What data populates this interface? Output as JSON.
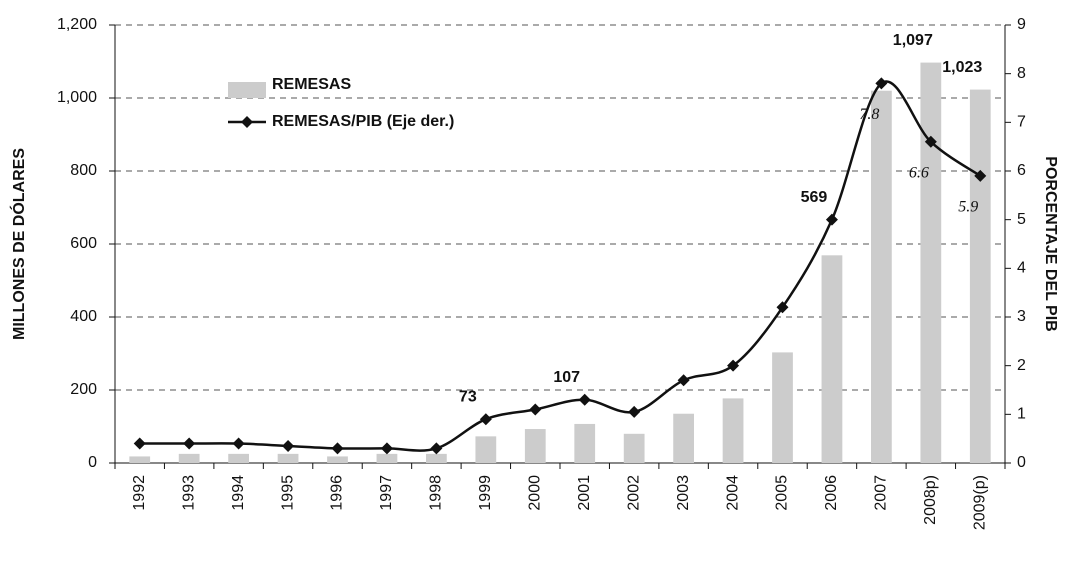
{
  "chart_data": {
    "type": "bar_line",
    "categories": [
      "1992",
      "1993",
      "1994",
      "1995",
      "1996",
      "1997",
      "1998",
      "1999",
      "2000",
      "2001",
      "2002",
      "2003",
      "2004",
      "2005",
      "2006",
      "2007",
      "2008p)",
      "2009(p)"
    ],
    "series": [
      {
        "name": "REMESAS",
        "color": "#cccccc",
        "type": "bar",
        "values": [
          18,
          25,
          25,
          25,
          18,
          25,
          25,
          73,
          93,
          107,
          80,
          135,
          177,
          303,
          569,
          1020,
          1097,
          1023
        ],
        "value_labels": [
          null,
          null,
          null,
          null,
          null,
          null,
          null,
          "73",
          null,
          "107",
          null,
          null,
          null,
          null,
          "569",
          null,
          "1,097",
          "1,023"
        ]
      },
      {
        "name": "REMESAS/PIB (Eje der.)",
        "color": "#111111",
        "type": "line",
        "axis": "y2",
        "values": [
          0.4,
          0.4,
          0.4,
          0.35,
          0.3,
          0.3,
          0.3,
          0.9,
          1.1,
          1.3,
          1.05,
          1.7,
          2.0,
          3.2,
          5.0,
          7.8,
          6.6,
          5.9
        ],
        "value_labels": [
          null,
          null,
          null,
          null,
          null,
          null,
          null,
          null,
          null,
          null,
          null,
          null,
          null,
          null,
          null,
          "7.8",
          "6.6",
          "5.9"
        ]
      }
    ],
    "y_label": "MILLONES DE DÓLARES",
    "y2_label": "PORCENTAJE DEL PIB",
    "ylim": [
      0,
      1200
    ],
    "yticks": [
      0,
      200,
      400,
      600,
      800,
      {
        "value": 1000,
        "label": "1,000"
      },
      {
        "value": 1200,
        "label": "1,200"
      }
    ],
    "y2lim": [
      0,
      9
    ],
    "y2ticks": [
      0,
      1,
      2,
      3,
      4,
      5,
      6,
      7,
      8,
      9
    ],
    "grid": true,
    "legend": "upper left"
  }
}
